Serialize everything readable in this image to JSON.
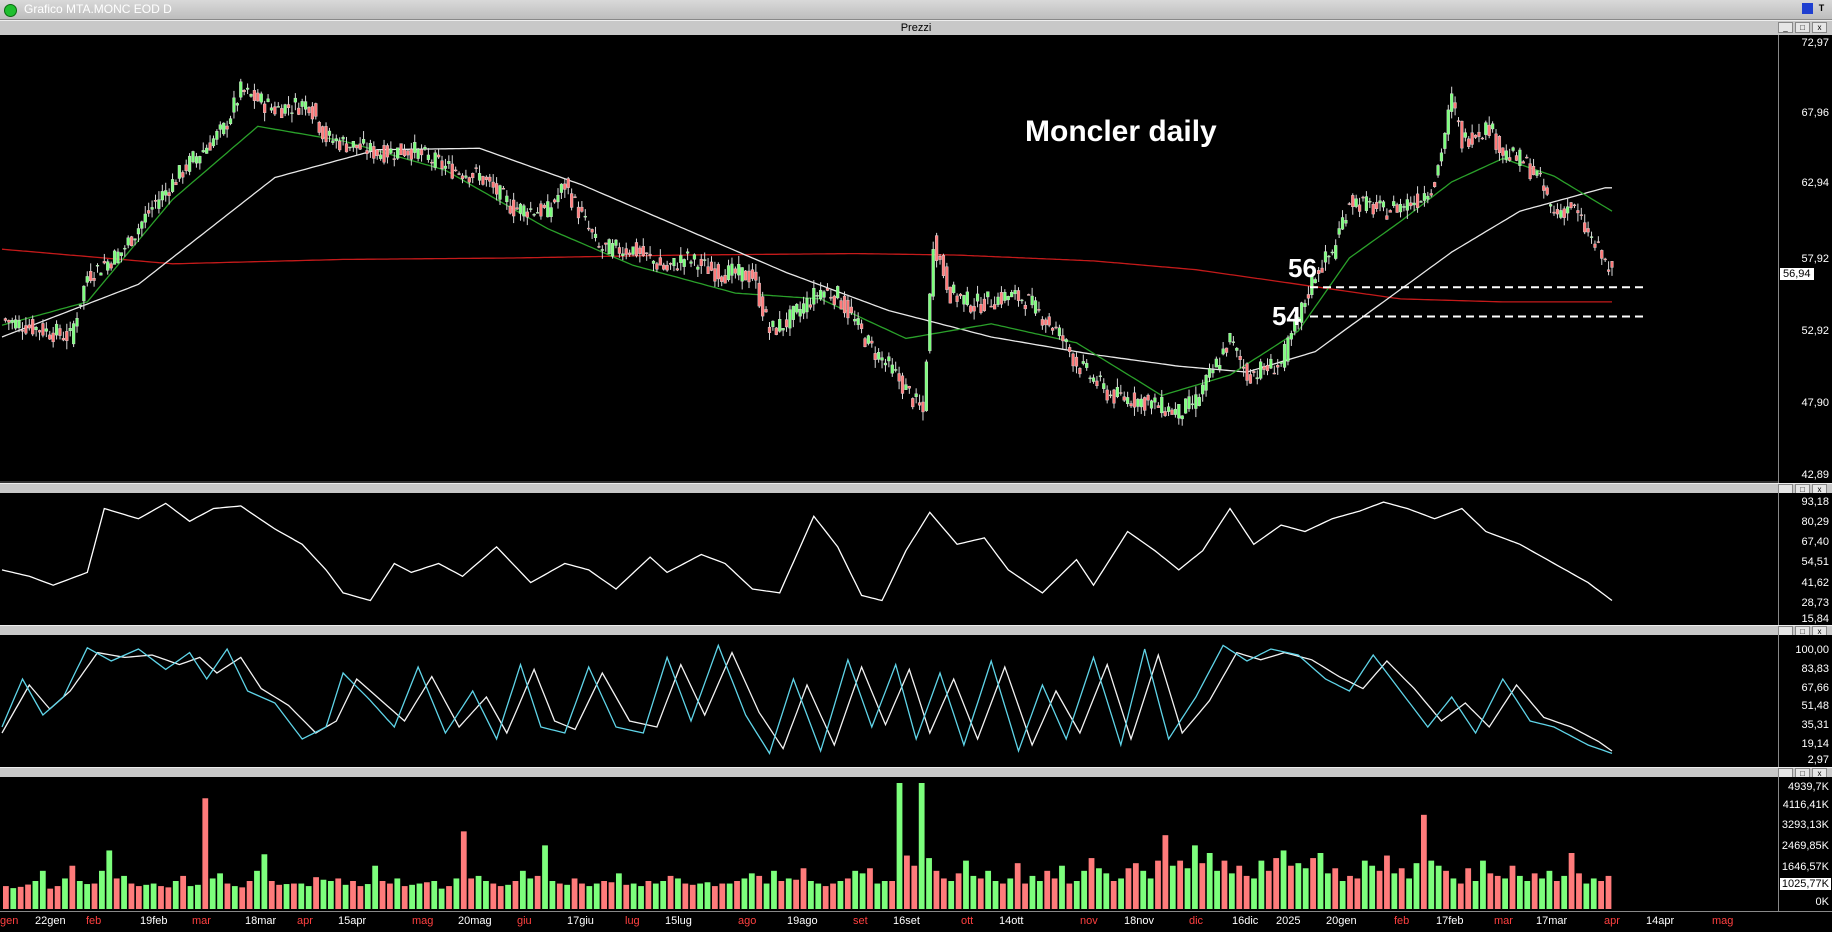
{
  "window": {
    "title": "Grafico MTA.MONC EOD D"
  },
  "price_pane": {
    "header": "Prezzi",
    "annotation": "Moncler daily",
    "axis_ticks": [
      "72,97",
      "67,96",
      "62,94",
      "57,92",
      "52,92",
      "47,90",
      "42,89"
    ],
    "last_price": "56,94",
    "level_labels": [
      "56",
      "54"
    ]
  },
  "rsi_pane": {
    "axis_ticks": [
      "93,18",
      "80,29",
      "67,40",
      "54,51",
      "41,62",
      "28,73",
      "15,84"
    ]
  },
  "stoch_pane": {
    "axis_ticks": [
      "100,00",
      "83,83",
      "67,66",
      "51,48",
      "35,31",
      "19,14",
      "2,97"
    ]
  },
  "volume_pane": {
    "axis_ticks": [
      "4939,7K",
      "4116,41K",
      "3293,13K",
      "2469,85K",
      "1646,57K",
      "1025,77K",
      "0K"
    ]
  },
  "x_axis": {
    "labels": [
      {
        "t": "gen",
        "c": "#ff4040"
      },
      {
        "t": "22gen",
        "c": "#ffffff"
      },
      {
        "t": "feb",
        "c": "#ff4040"
      },
      {
        "t": "19feb",
        "c": "#ffffff"
      },
      {
        "t": "mar",
        "c": "#ff4040"
      },
      {
        "t": "18mar",
        "c": "#ffffff"
      },
      {
        "t": "apr",
        "c": "#ff4040"
      },
      {
        "t": "15apr",
        "c": "#ffffff"
      },
      {
        "t": "mag",
        "c": "#ff4040"
      },
      {
        "t": "20mag",
        "c": "#ffffff"
      },
      {
        "t": "giu",
        "c": "#ff4040"
      },
      {
        "t": "17giu",
        "c": "#ffffff"
      },
      {
        "t": "lug",
        "c": "#ff4040"
      },
      {
        "t": "15lug",
        "c": "#ffffff"
      },
      {
        "t": "ago",
        "c": "#ff4040"
      },
      {
        "t": "19ago",
        "c": "#ffffff"
      },
      {
        "t": "set",
        "c": "#ff4040"
      },
      {
        "t": "16set",
        "c": "#ffffff"
      },
      {
        "t": "ott",
        "c": "#ff4040"
      },
      {
        "t": "14ott",
        "c": "#ffffff"
      },
      {
        "t": "nov",
        "c": "#ff4040"
      },
      {
        "t": "18nov",
        "c": "#ffffff"
      },
      {
        "t": "dic",
        "c": "#ff4040"
      },
      {
        "t": "16dic",
        "c": "#ffffff"
      },
      {
        "t": "2025",
        "c": "#ffffff"
      },
      {
        "t": "20gen",
        "c": "#ffffff"
      },
      {
        "t": "feb",
        "c": "#ff4040"
      },
      {
        "t": "17feb",
        "c": "#ffffff"
      },
      {
        "t": "mar",
        "c": "#ff4040"
      },
      {
        "t": "17mar",
        "c": "#ffffff"
      },
      {
        "t": "apr",
        "c": "#ff4040"
      },
      {
        "t": "14apr",
        "c": "#ffffff"
      },
      {
        "t": "mag",
        "c": "#ff4040"
      }
    ]
  },
  "chart_data": {
    "type": "candlestick",
    "y_range": [
      42.89,
      72.97
    ],
    "levels": [
      56,
      54
    ],
    "close_points": [
      [
        0,
        53.8
      ],
      [
        10,
        53.2
      ],
      [
        20,
        52.6
      ],
      [
        25,
        56.8
      ],
      [
        35,
        58.4
      ],
      [
        45,
        61.8
      ],
      [
        55,
        64.5
      ],
      [
        65,
        66.8
      ],
      [
        70,
        69.4
      ],
      [
        80,
        68.2
      ],
      [
        90,
        68.6
      ],
      [
        95,
        66.2
      ],
      [
        110,
        65.2
      ],
      [
        120,
        65.4
      ],
      [
        130,
        64.2
      ],
      [
        140,
        63.6
      ],
      [
        150,
        61.4
      ],
      [
        160,
        61.2
      ],
      [
        165,
        63.0
      ],
      [
        175,
        58.6
      ],
      [
        185,
        58.6
      ],
      [
        195,
        57.2
      ],
      [
        200,
        58.0
      ],
      [
        210,
        57.0
      ],
      [
        220,
        56.8
      ],
      [
        225,
        53.0
      ],
      [
        230,
        53.6
      ],
      [
        240,
        55.8
      ],
      [
        245,
        55.4
      ],
      [
        255,
        51.8
      ],
      [
        260,
        50.6
      ],
      [
        270,
        47.4
      ],
      [
        273,
        59.2
      ],
      [
        278,
        55.6
      ],
      [
        285,
        54.8
      ],
      [
        295,
        55.4
      ],
      [
        300,
        55.2
      ],
      [
        310,
        52.8
      ],
      [
        315,
        50.8
      ],
      [
        325,
        48.6
      ],
      [
        335,
        48.2
      ],
      [
        345,
        47.4
      ],
      [
        350,
        48.2
      ],
      [
        360,
        52.4
      ],
      [
        365,
        50.0
      ],
      [
        370,
        50.4
      ],
      [
        375,
        50.8
      ],
      [
        380,
        53.8
      ],
      [
        385,
        57.0
      ],
      [
        390,
        58.4
      ],
      [
        395,
        62.0
      ],
      [
        405,
        61.2
      ],
      [
        415,
        62.0
      ],
      [
        420,
        63.2
      ],
      [
        425,
        68.8
      ],
      [
        428,
        66.0
      ],
      [
        432,
        66.6
      ],
      [
        436,
        67.0
      ],
      [
        440,
        65.2
      ],
      [
        446,
        64.6
      ],
      [
        450,
        63.6
      ],
      [
        455,
        61.0
      ],
      [
        460,
        61.6
      ],
      [
        465,
        59.6
      ],
      [
        472,
        56.9
      ]
    ],
    "ma_white_points": [
      [
        0,
        52.6
      ],
      [
        40,
        56.2
      ],
      [
        80,
        63.5
      ],
      [
        110,
        65.4
      ],
      [
        140,
        65.5
      ],
      [
        170,
        63.0
      ],
      [
        200,
        60.0
      ],
      [
        230,
        57.0
      ],
      [
        260,
        54.4
      ],
      [
        290,
        52.6
      ],
      [
        320,
        51.4
      ],
      [
        345,
        50.6
      ],
      [
        365,
        50.2
      ],
      [
        385,
        51.6
      ],
      [
        405,
        55.0
      ],
      [
        425,
        58.4
      ],
      [
        445,
        61.2
      ],
      [
        470,
        62.8
      ]
    ],
    "ma_green_points": [
      [
        0,
        53.4
      ],
      [
        25,
        55.0
      ],
      [
        50,
        62.0
      ],
      [
        75,
        67.0
      ],
      [
        100,
        66.0
      ],
      [
        130,
        64.0
      ],
      [
        160,
        60.0
      ],
      [
        185,
        57.5
      ],
      [
        215,
        55.6
      ],
      [
        240,
        55.2
      ],
      [
        265,
        52.5
      ],
      [
        290,
        53.5
      ],
      [
        315,
        52.2
      ],
      [
        340,
        48.6
      ],
      [
        360,
        50.0
      ],
      [
        380,
        53.0
      ],
      [
        395,
        58.0
      ],
      [
        410,
        60.5
      ],
      [
        425,
        63.2
      ],
      [
        440,
        64.8
      ],
      [
        455,
        63.6
      ],
      [
        472,
        61.2
      ]
    ],
    "ma_red_points": [
      [
        0,
        58.6
      ],
      [
        50,
        57.6
      ],
      [
        100,
        57.9
      ],
      [
        150,
        58.0
      ],
      [
        200,
        58.2
      ],
      [
        250,
        58.3
      ],
      [
        280,
        58.2
      ],
      [
        320,
        57.8
      ],
      [
        350,
        57.2
      ],
      [
        380,
        56.2
      ],
      [
        410,
        55.2
      ],
      [
        440,
        55.0
      ],
      [
        472,
        55.0
      ]
    ],
    "rsi_points": [
      [
        0,
        40
      ],
      [
        8,
        35
      ],
      [
        15,
        28
      ],
      [
        25,
        38
      ],
      [
        30,
        88
      ],
      [
        40,
        80
      ],
      [
        48,
        92
      ],
      [
        55,
        78
      ],
      [
        62,
        88
      ],
      [
        70,
        90
      ],
      [
        80,
        72
      ],
      [
        88,
        60
      ],
      [
        95,
        40
      ],
      [
        100,
        22
      ],
      [
        108,
        16
      ],
      [
        115,
        45
      ],
      [
        120,
        38
      ],
      [
        128,
        45
      ],
      [
        135,
        35
      ],
      [
        145,
        58
      ],
      [
        155,
        30
      ],
      [
        165,
        45
      ],
      [
        172,
        40
      ],
      [
        180,
        25
      ],
      [
        190,
        50
      ],
      [
        195,
        38
      ],
      [
        205,
        52
      ],
      [
        212,
        45
      ],
      [
        220,
        25
      ],
      [
        228,
        22
      ],
      [
        238,
        82
      ],
      [
        245,
        58
      ],
      [
        252,
        20
      ],
      [
        258,
        16
      ],
      [
        265,
        55
      ],
      [
        272,
        85
      ],
      [
        280,
        60
      ],
      [
        288,
        65
      ],
      [
        295,
        40
      ],
      [
        305,
        22
      ],
      [
        315,
        48
      ],
      [
        320,
        28
      ],
      [
        330,
        70
      ],
      [
        338,
        55
      ],
      [
        345,
        40
      ],
      [
        352,
        55
      ],
      [
        360,
        88
      ],
      [
        367,
        60
      ],
      [
        375,
        75
      ],
      [
        382,
        70
      ],
      [
        390,
        80
      ],
      [
        398,
        86
      ],
      [
        405,
        93
      ],
      [
        412,
        88
      ],
      [
        420,
        80
      ],
      [
        428,
        88
      ],
      [
        435,
        70
      ],
      [
        445,
        60
      ],
      [
        455,
        45
      ],
      [
        465,
        30
      ],
      [
        472,
        16
      ]
    ],
    "stoch_k_points": [
      [
        0,
        30
      ],
      [
        6,
        70
      ],
      [
        12,
        40
      ],
      [
        18,
        55
      ],
      [
        25,
        96
      ],
      [
        32,
        85
      ],
      [
        40,
        95
      ],
      [
        48,
        78
      ],
      [
        55,
        92
      ],
      [
        60,
        70
      ],
      [
        66,
        95
      ],
      [
        72,
        60
      ],
      [
        80,
        50
      ],
      [
        88,
        20
      ],
      [
        95,
        30
      ],
      [
        100,
        75
      ],
      [
        108,
        52
      ],
      [
        115,
        30
      ],
      [
        122,
        80
      ],
      [
        130,
        25
      ],
      [
        138,
        60
      ],
      [
        145,
        20
      ],
      [
        152,
        82
      ],
      [
        158,
        30
      ],
      [
        165,
        25
      ],
      [
        172,
        80
      ],
      [
        180,
        30
      ],
      [
        188,
        25
      ],
      [
        195,
        88
      ],
      [
        202,
        35
      ],
      [
        210,
        98
      ],
      [
        218,
        40
      ],
      [
        225,
        8
      ],
      [
        232,
        70
      ],
      [
        240,
        10
      ],
      [
        248,
        86
      ],
      [
        255,
        30
      ],
      [
        262,
        82
      ],
      [
        268,
        20
      ],
      [
        275,
        75
      ],
      [
        282,
        15
      ],
      [
        290,
        85
      ],
      [
        298,
        10
      ],
      [
        305,
        65
      ],
      [
        312,
        20
      ],
      [
        320,
        88
      ],
      [
        328,
        15
      ],
      [
        335,
        95
      ],
      [
        342,
        20
      ],
      [
        350,
        55
      ],
      [
        358,
        98
      ],
      [
        365,
        85
      ],
      [
        372,
        95
      ],
      [
        380,
        90
      ],
      [
        388,
        70
      ],
      [
        395,
        60
      ],
      [
        402,
        90
      ],
      [
        410,
        60
      ],
      [
        418,
        30
      ],
      [
        425,
        55
      ],
      [
        432,
        25
      ],
      [
        440,
        70
      ],
      [
        448,
        35
      ],
      [
        455,
        30
      ],
      [
        465,
        15
      ],
      [
        472,
        8
      ]
    ],
    "stoch_d_points": [
      [
        0,
        25
      ],
      [
        8,
        65
      ],
      [
        14,
        45
      ],
      [
        20,
        60
      ],
      [
        28,
        92
      ],
      [
        36,
        88
      ],
      [
        44,
        90
      ],
      [
        52,
        82
      ],
      [
        58,
        88
      ],
      [
        63,
        75
      ],
      [
        70,
        88
      ],
      [
        76,
        62
      ],
      [
        84,
        48
      ],
      [
        92,
        25
      ],
      [
        98,
        35
      ],
      [
        104,
        70
      ],
      [
        112,
        50
      ],
      [
        118,
        35
      ],
      [
        126,
        72
      ],
      [
        134,
        30
      ],
      [
        142,
        55
      ],
      [
        148,
        25
      ],
      [
        156,
        78
      ],
      [
        162,
        35
      ],
      [
        168,
        28
      ],
      [
        176,
        75
      ],
      [
        184,
        35
      ],
      [
        192,
        30
      ],
      [
        199,
        82
      ],
      [
        206,
        40
      ],
      [
        214,
        92
      ],
      [
        222,
        42
      ],
      [
        229,
        12
      ],
      [
        236,
        65
      ],
      [
        244,
        15
      ],
      [
        252,
        80
      ],
      [
        259,
        32
      ],
      [
        266,
        78
      ],
      [
        272,
        25
      ],
      [
        279,
        70
      ],
      [
        286,
        20
      ],
      [
        294,
        80
      ],
      [
        302,
        15
      ],
      [
        309,
        60
      ],
      [
        316,
        25
      ],
      [
        324,
        82
      ],
      [
        331,
        20
      ],
      [
        339,
        90
      ],
      [
        346,
        25
      ],
      [
        354,
        52
      ],
      [
        362,
        92
      ],
      [
        369,
        86
      ],
      [
        376,
        92
      ],
      [
        384,
        86
      ],
      [
        392,
        72
      ],
      [
        399,
        62
      ],
      [
        406,
        85
      ],
      [
        414,
        62
      ],
      [
        422,
        35
      ],
      [
        429,
        50
      ],
      [
        436,
        30
      ],
      [
        444,
        65
      ],
      [
        452,
        38
      ],
      [
        460,
        30
      ],
      [
        468,
        18
      ],
      [
        472,
        10
      ]
    ],
    "volume_k": [
      900,
      820,
      870,
      960,
      1100,
      1500,
      800,
      900,
      1200,
      1700,
      1100,
      980,
      1000,
      1500,
      2300,
      1200,
      1300,
      1000,
      900,
      950,
      1000,
      900,
      850,
      1100,
      1300,
      900,
      950,
      4350,
      1200,
      1400,
      1000,
      900,
      850,
      1100,
      1500,
      2150,
      1100,
      950,
      980,
      1000,
      1000,
      900,
      1250,
      1150,
      1100,
      1200,
      950,
      1100,
      900,
      980,
      1700,
      1100,
      1000,
      1200,
      900,
      950,
      1000,
      1050,
      1100,
      800,
      900,
      1200,
      3050,
      1200,
      1300,
      1100,
      1000,
      900,
      950,
      1100,
      1500,
      1200,
      1300,
      2500,
      1100,
      1000,
      950,
      1200,
      1000,
      900,
      1000,
      1100,
      1050,
      1400,
      950,
      1000,
      900,
      1100,
      1000,
      1100,
      1300,
      1200,
      1000,
      950,
      1000,
      1050,
      900,
      1000,
      1000,
      1100,
      1200,
      1400,
      1300,
      1000,
      1500,
      1100,
      1200,
      1150,
      1600,
      1100,
      1000,
      900,
      1000,
      1100,
      1200,
      1500,
      1400,
      1600,
      1000,
      1100,
      1100,
      4950,
      2100,
      1700,
      4950,
      2000,
      1500,
      1200,
      1100,
      1400,
      1900,
      1300,
      1200,
      1500,
      1100,
      1000,
      1200,
      1800,
      1000,
      1300,
      1100,
      1500,
      1200,
      1700,
      1000,
      1100,
      1500,
      2000,
      1600,
      1400,
      1100,
      1200,
      1600,
      1800,
      1500,
      1200,
      1900,
      2900,
      1700,
      1900,
      1600,
      2500,
      1800,
      2200,
      1500,
      1900,
      1400,
      1700,
      1300,
      1200,
      1900,
      1500,
      2000,
      2300,
      1700,
      1800,
      1600,
      2000,
      2200,
      1400,
      1600,
      1100,
      1300,
      1200,
      1900,
      1700,
      1500,
      2100,
      1400,
      1600,
      1200,
      1800,
      3700,
      1900,
      1700,
      1500,
      1200,
      1000,
      1600,
      1100,
      1900,
      1400,
      1300,
      1200,
      1700,
      1300,
      1100,
      1400,
      1200,
      1500,
      1100,
      1300,
      2200,
      1400,
      1000,
      1200,
      1100,
      1300
    ]
  }
}
